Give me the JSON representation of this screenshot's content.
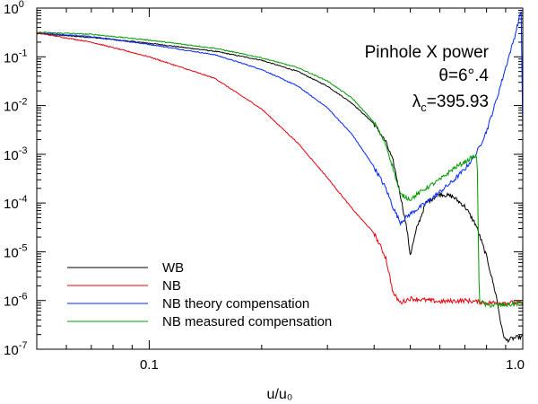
{
  "chart_data": {
    "type": "line",
    "scale": {
      "x": "log",
      "y": "log"
    },
    "xlim": [
      0.05,
      1.0
    ],
    "ylim": [
      1e-07,
      1
    ],
    "xlabel": "u/u₀",
    "ylabel": "",
    "x_ticks": [
      {
        "value": 0.1,
        "label": "0.1"
      },
      {
        "value": 1.0,
        "label": "1.0"
      }
    ],
    "y_ticks": [
      {
        "value": 1,
        "base": "10",
        "exp": "0"
      },
      {
        "value": 0.1,
        "base": "10",
        "exp": "-1"
      },
      {
        "value": 0.01,
        "base": "10",
        "exp": "-2"
      },
      {
        "value": 0.001,
        "base": "10",
        "exp": "-3"
      },
      {
        "value": 0.0001,
        "base": "10",
        "exp": "-4"
      },
      {
        "value": 1e-05,
        "base": "10",
        "exp": "-5"
      },
      {
        "value": 1e-06,
        "base": "10",
        "exp": "-6"
      },
      {
        "value": 1e-07,
        "base": "10",
        "exp": "-7"
      }
    ],
    "annotations": {
      "title": "Pinhole X power",
      "theta": "θ=6°.4",
      "lambda_main": "λ",
      "lambda_sub": "c",
      "lambda_value": "=395.93"
    },
    "legend_position": "bottom-left",
    "series": [
      {
        "name": "WB",
        "color": "#000000",
        "points": [
          [
            0.05,
            0.3
          ],
          [
            0.07,
            0.25
          ],
          [
            0.1,
            0.19
          ],
          [
            0.15,
            0.13
          ],
          [
            0.2,
            0.085
          ],
          [
            0.25,
            0.05
          ],
          [
            0.3,
            0.025
          ],
          [
            0.35,
            0.011
          ],
          [
            0.4,
            0.0042
          ],
          [
            0.43,
            0.0018
          ],
          [
            0.45,
            0.0007
          ],
          [
            0.47,
            0.00015
          ],
          [
            0.49,
            2.8e-05
          ],
          [
            0.5,
            8.5e-06
          ],
          [
            0.52,
            3e-05
          ],
          [
            0.55,
            0.0001
          ],
          [
            0.6,
            0.000155
          ],
          [
            0.65,
            0.000135
          ],
          [
            0.7,
            8.5e-05
          ],
          [
            0.75,
            3.5e-05
          ],
          [
            0.8,
            8e-06
          ],
          [
            0.85,
            1.2e-06
          ],
          [
            0.88,
            2.5e-07
          ],
          [
            0.9,
            1.5e-07
          ],
          [
            0.95,
            1.7e-07
          ],
          [
            1.0,
            1.8e-07
          ]
        ]
      },
      {
        "name": "NB",
        "color": "#e8000b",
        "points": [
          [
            0.05,
            0.31
          ],
          [
            0.07,
            0.2
          ],
          [
            0.1,
            0.1
          ],
          [
            0.15,
            0.036
          ],
          [
            0.2,
            0.0085
          ],
          [
            0.25,
            0.0017
          ],
          [
            0.3,
            0.00033
          ],
          [
            0.35,
            7.5e-05
          ],
          [
            0.4,
            2.4e-05
          ],
          [
            0.43,
            7.5e-06
          ],
          [
            0.45,
            1.4e-06
          ],
          [
            0.47,
            9e-07
          ],
          [
            0.5,
            1.1e-06
          ],
          [
            0.6,
            9.5e-07
          ],
          [
            0.7,
            1e-06
          ],
          [
            0.8,
            9e-07
          ],
          [
            0.9,
            9e-07
          ],
          [
            1.0,
            9e-07
          ]
        ]
      },
      {
        "name": "NB theory compensation",
        "color": "#0026ff",
        "points": [
          [
            0.05,
            0.31
          ],
          [
            0.07,
            0.26
          ],
          [
            0.1,
            0.18
          ],
          [
            0.15,
            0.11
          ],
          [
            0.2,
            0.055
          ],
          [
            0.25,
            0.025
          ],
          [
            0.3,
            0.009
          ],
          [
            0.35,
            0.0025
          ],
          [
            0.4,
            0.00055
          ],
          [
            0.43,
            0.0002
          ],
          [
            0.45,
            8e-05
          ],
          [
            0.47,
            4e-05
          ],
          [
            0.5,
            6e-05
          ],
          [
            0.55,
            0.0001
          ],
          [
            0.6,
            0.00017
          ],
          [
            0.65,
            0.00028
          ],
          [
            0.7,
            0.0005
          ],
          [
            0.75,
            0.001
          ],
          [
            0.8,
            0.003
          ],
          [
            0.85,
            0.013
          ],
          [
            0.9,
            0.06
          ],
          [
            0.95,
            0.25
          ],
          [
            0.99,
            0.9
          ],
          [
            1.0,
            0.003
          ]
        ]
      },
      {
        "name": "NB measured compensation",
        "color": "#009900",
        "points": [
          [
            0.05,
            0.32
          ],
          [
            0.07,
            0.29
          ],
          [
            0.1,
            0.22
          ],
          [
            0.15,
            0.15
          ],
          [
            0.2,
            0.095
          ],
          [
            0.25,
            0.06
          ],
          [
            0.3,
            0.032
          ],
          [
            0.35,
            0.014
          ],
          [
            0.4,
            0.0045
          ],
          [
            0.43,
            0.0016
          ],
          [
            0.45,
            0.0005
          ],
          [
            0.47,
            0.00015
          ],
          [
            0.5,
            0.00012
          ],
          [
            0.55,
            0.0002
          ],
          [
            0.6,
            0.0003
          ],
          [
            0.65,
            0.0005
          ],
          [
            0.7,
            0.0007
          ],
          [
            0.74,
            0.0009
          ],
          [
            0.755,
            0.0009
          ],
          [
            0.765,
            1e-06
          ],
          [
            0.8,
            8e-07
          ],
          [
            0.9,
            8e-07
          ],
          [
            1.0,
            9e-07
          ]
        ]
      }
    ]
  }
}
